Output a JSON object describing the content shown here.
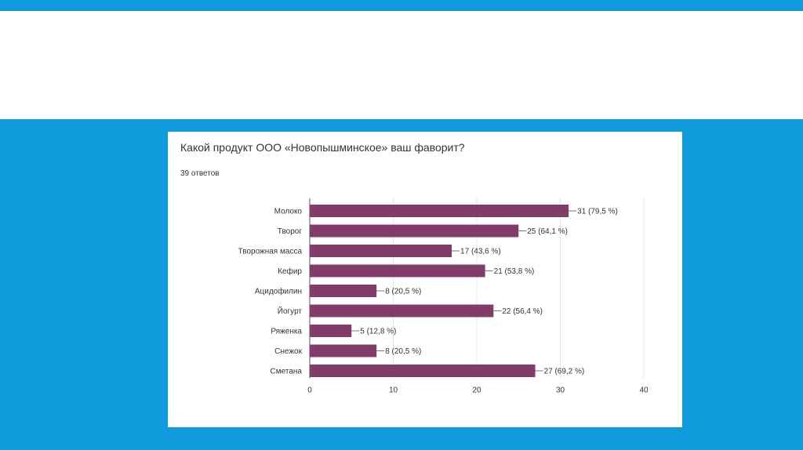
{
  "colors": {
    "background": "#0f9bdc",
    "bar": "#833c6a",
    "grid": "#e6e6e6",
    "axis": "#555555"
  },
  "chart_data": {
    "type": "bar",
    "orientation": "horizontal",
    "title": "Какой продукт ООО «Новопышминское» ваш фаворит?",
    "subtitle": "39 ответов",
    "categories": [
      "Молоко",
      "Творог",
      "Творожная масса",
      "Кефир",
      "Ацидофилин",
      "Йогурт",
      "Ряженка",
      "Снежок",
      "Сметана"
    ],
    "values": [
      31,
      25,
      17,
      21,
      8,
      22,
      5,
      8,
      27
    ],
    "value_labels": [
      "31 (79,5 %)",
      "25 (64,1 %)",
      "17 (43,6 %)",
      "21 (53,8 %)",
      "8 (20,5 %)",
      "22 (56,4 %)",
      "5 (12,8 %)",
      "8 (20,5 %)",
      "27 (69,2 %)"
    ],
    "xlim": [
      0,
      40
    ],
    "xticks": [
      0,
      10,
      20,
      30,
      40
    ],
    "grid": true,
    "legend": "none"
  }
}
